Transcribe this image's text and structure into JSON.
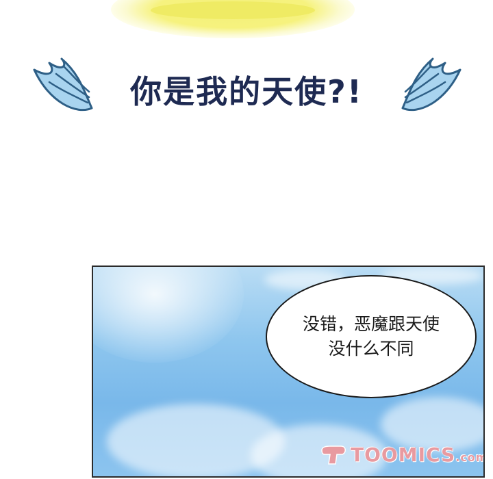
{
  "title": {
    "text": "你是我的天使?!"
  },
  "panel": {
    "speech_bubble": {
      "line1": "没错，恶魔跟天使",
      "line2": "没什么不同"
    },
    "watermark": {
      "brand": "TOOMICS",
      "domain": ".com"
    }
  },
  "colors": {
    "title": "#1e2a52",
    "wing_fill": "#a9d4ef",
    "wing_stroke": "#2e5f86",
    "halo": "#eeea62",
    "sky": "#79b8ea",
    "watermark": "#e89aa0"
  }
}
